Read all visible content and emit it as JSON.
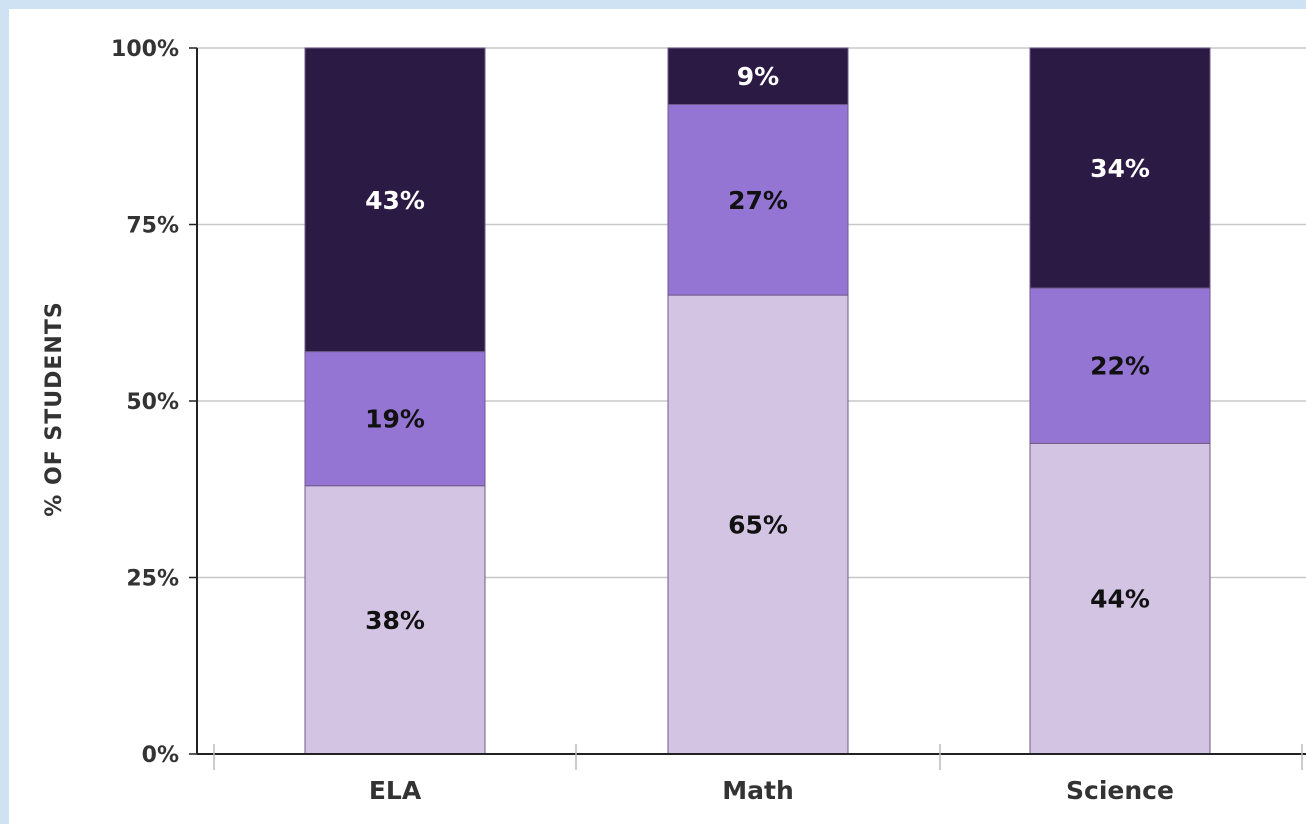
{
  "chart_data": {
    "type": "bar",
    "stacked": true,
    "categories": [
      "ELA",
      "Math",
      "Science"
    ],
    "series": [
      {
        "values": [
          38,
          65,
          44
        ],
        "labels": [
          "38%",
          "65%",
          "44%"
        ],
        "color": "#d4c4e4",
        "label_color": "#111111"
      },
      {
        "values": [
          19,
          27,
          22
        ],
        "labels": [
          "19%",
          "27%",
          "22%"
        ],
        "color": "#9575d3",
        "label_color": "#111111"
      },
      {
        "values": [
          43,
          9,
          34
        ],
        "labels": [
          "43%",
          "9%",
          "34%"
        ],
        "color": "#2b1a43",
        "label_color": "#ffffff"
      }
    ],
    "ylabel": "% OF STUDENTS",
    "yticks": [
      {
        "value": 0,
        "label": "0%"
      },
      {
        "value": 25,
        "label": "25%"
      },
      {
        "value": 50,
        "label": "50%"
      },
      {
        "value": 75,
        "label": "75%"
      },
      {
        "value": 100,
        "label": "100%"
      }
    ],
    "ylim": [
      0,
      100
    ],
    "grid": true,
    "legend": "none"
  }
}
